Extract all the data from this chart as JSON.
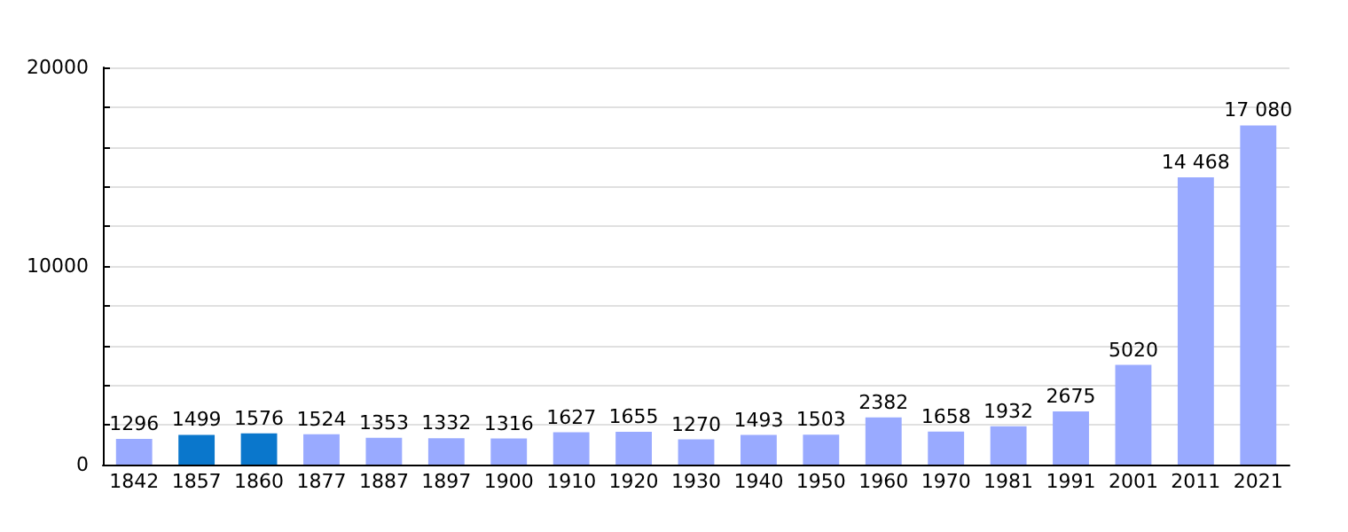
{
  "chart_data": {
    "type": "bar",
    "categories": [
      "1842",
      "1857",
      "1860",
      "1877",
      "1887",
      "1897",
      "1900",
      "1910",
      "1920",
      "1930",
      "1940",
      "1950",
      "1960",
      "1970",
      "1981",
      "1991",
      "2001",
      "2011",
      "2021"
    ],
    "values": [
      1296,
      1499,
      1576,
      1524,
      1353,
      1332,
      1316,
      1627,
      1655,
      1270,
      1493,
      1503,
      2382,
      1658,
      1932,
      2675,
      5020,
      14468,
      17080
    ],
    "value_labels": [
      "1296",
      "1499",
      "1576",
      "1524",
      "1353",
      "1332",
      "1316",
      "1627",
      "1655",
      "1270",
      "1493",
      "1503",
      "2382",
      "1658",
      "1932",
      "2675",
      "5020",
      "14 468",
      "17 080"
    ],
    "colors": [
      "#99aaff",
      "#0a77cc",
      "#0a77cc",
      "#99aaff",
      "#99aaff",
      "#99aaff",
      "#99aaff",
      "#99aaff",
      "#99aaff",
      "#99aaff",
      "#99aaff",
      "#99aaff",
      "#99aaff",
      "#99aaff",
      "#99aaff",
      "#99aaff",
      "#99aaff",
      "#99aaff",
      "#99aaff"
    ],
    "ylim": [
      0,
      20000
    ],
    "yticks": [
      0,
      {
        "value": 2000,
        "label": null
      },
      {
        "value": 4000,
        "label": null
      },
      {
        "value": 6000,
        "label": null
      },
      {
        "value": 8000,
        "label": null
      },
      10000,
      {
        "value": 12000,
        "label": null
      },
      {
        "value": 14000,
        "label": null
      },
      {
        "value": 16000,
        "label": null
      },
      {
        "value": 18000,
        "label": null
      },
      20000
    ],
    "grid": "y"
  }
}
